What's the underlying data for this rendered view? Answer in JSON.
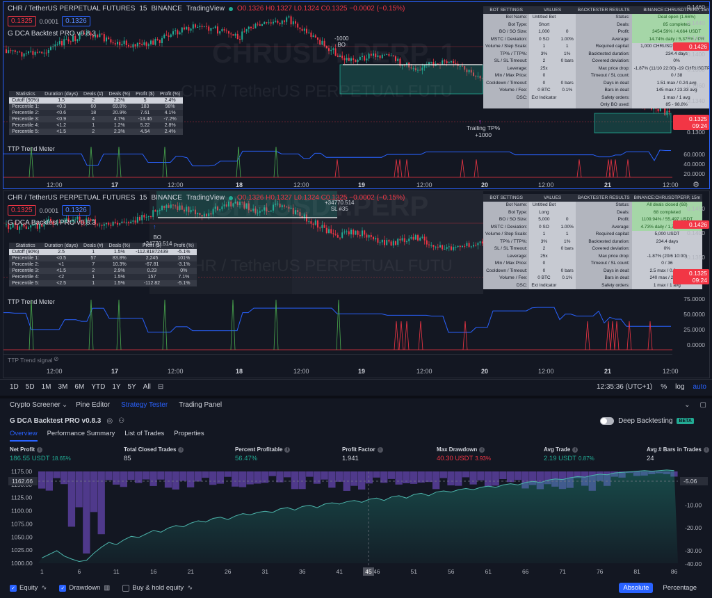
{
  "pane1": {
    "symbol": "CHR / TetherUS PERPETUAL FUTURES",
    "interval": "15",
    "exchange": "BINANCE",
    "source": "TradingView",
    "ohlc": {
      "o": "O0.1326",
      "h": "H0.1327",
      "l": "L0.1324",
      "c": "C0.1325",
      "chg": "−0.0002 (−0.15%)"
    },
    "sell_price": "0.1325",
    "spread": "0.0001",
    "buy_price": "0.1326",
    "indicator": "G DCA Backtest PRO v0.8.3",
    "watermark1": "CHRUSDT.PERP, 1",
    "watermark2": "CHR / TetherUS PERPETUAL FUTU",
    "stats": {
      "headers": [
        "Statistics",
        "Duration (days)",
        "Deals (#)",
        "Deals (%)",
        "Profit ($)",
        "Profit (%)"
      ],
      "rows": [
        [
          "Cutoff (90%)",
          "1.5",
          "2",
          "2.3%",
          "5",
          "2.4%"
        ],
        [
          "Percentile 1:",
          "<0.3",
          "60",
          "69.8%",
          "183",
          "98%"
        ],
        [
          "Percentile 2:",
          "<0.6",
          "18",
          "20.9%",
          "7.61",
          "4.1%"
        ],
        [
          "Percentile 3:",
          "<0.9",
          "4",
          "4.7%",
          "-13.46",
          "-7.2%"
        ],
        [
          "Percentile 4:",
          "<1.2",
          "1",
          "1.2%",
          "5.22",
          "2.8%"
        ],
        [
          "Percentile 5:",
          "<1.5",
          "2",
          "2.3%",
          "4.54",
          "2.4%"
        ]
      ]
    },
    "bot_settings": {
      "h1": "BOT SETTINGS",
      "h2": "VALUES",
      "h3": "BACKTESTER RESULTS",
      "h4": "BINANCE:CHRUSDTPERP, 15m",
      "rows": [
        [
          "Bot Name:",
          "Untitled Bot",
          "",
          "Status:",
          "Deal open (1.66%)"
        ],
        [
          "Bot Type:",
          "Short",
          "",
          "Deals:",
          "85 completed"
        ],
        [
          "BO / SO Size:",
          "1,000",
          "0",
          "Profit:",
          "3454.59% / 4,664 USDT"
        ],
        [
          "MSTC / Deviation:",
          "0 SO",
          "1.00%",
          "Average:",
          "14.74% daily / 5,378% APR"
        ],
        [
          "Volume / Step Scale:",
          "1",
          "1",
          "Required capital:",
          "1,000 CHRUSDTPERP (135 USDT)"
        ],
        [
          "TP% / TTP%:",
          "3%",
          "1%",
          "Backtested duration:",
          "234.4 days"
        ],
        [
          "SL / SL Timeout:",
          "2",
          "0 bars",
          "Covered deviation:",
          "0%"
        ],
        [
          "Leverage:",
          "25x",
          "",
          "Max price drop:",
          "-1.87% (11/10 22:00) -19 CHRUSDTPERP"
        ],
        [
          "Min / Max Price:",
          "0",
          "",
          "Timeout / SL count:",
          "0 / 38"
        ],
        [
          "Cooldown / Timeout:",
          "0",
          "0 bars",
          "Days in deal:",
          "1.51 max / 0.24 avg"
        ],
        [
          "Volume / Fee:",
          "0 BTC",
          "0.1%",
          "Bars in deal:",
          "145 max / 23.33 avg"
        ],
        [
          "DSC:",
          "Ext Indicator",
          "",
          "Safety orders:",
          "1 max / 1 avg"
        ],
        [
          "",
          "",
          "",
          "Only BO used:",
          "85 - 98.8%"
        ]
      ]
    },
    "yaxis": [
      "0.1460",
      "0.1440",
      "0.1420",
      "0.1400",
      "0.1380",
      "0.1360",
      "0.1340",
      "0.1320",
      "0.1300"
    ],
    "last_price_tag": "0.1426",
    "current_price_tag": "0.1325",
    "countdown": "09:24",
    "ann_bo": "-1000",
    "ann_bo2": "BO",
    "ann_ttp": "Trailing TP%",
    "ann_ttp2": "+1000",
    "ttp_label": "TTP Trend Meter",
    "ttp_axis": [
      "60.0000",
      "40.0000",
      "20.0000"
    ],
    "xaxis": [
      {
        "t": "12:00",
        "bold": false
      },
      {
        "t": "17",
        "bold": true
      },
      {
        "t": "12:00",
        "bold": false
      },
      {
        "t": "18",
        "bold": true
      },
      {
        "t": "12:00",
        "bold": false
      },
      {
        "t": "19",
        "bold": true
      },
      {
        "t": "12:00",
        "bold": false
      },
      {
        "t": "20",
        "bold": true
      },
      {
        "t": "12:00",
        "bold": false
      },
      {
        "t": "21",
        "bold": true
      },
      {
        "t": "12:00",
        "bold": false
      }
    ]
  },
  "pane2": {
    "symbol": "CHR / TetherUS PERPETUAL FUTURES",
    "interval": "15",
    "exchange": "BINANCE",
    "source": "TradingView",
    "ohlc": {
      "o": "O0.1326",
      "h": "H0.1327",
      "l": "L0.1324",
      "c": "C0.1325",
      "chg": "−0.0002 (−0.15%)"
    },
    "sell_price": "0.1325",
    "spread": "0.0001",
    "buy_price": "0.1326",
    "indicator": "G DCA Backtest PRO v0.8.3",
    "watermark1": "CHRUSDT.PERP",
    "watermark2": "CHR / TetherUS PERPETUAL FUTU",
    "stats": {
      "headers": [
        "Statistics",
        "Duration (days)",
        "Deals (#)",
        "Deals (%)",
        "Profit ($)",
        "Profit (%)"
      ],
      "rows": [
        [
          "Cutoff (90%)",
          "2.5",
          "1",
          "1.5%",
          "-112.81872439",
          "-5.1%"
        ],
        [
          "Percentile 1:",
          "<0.5",
          "57",
          "83.8%",
          "2,245",
          "101%"
        ],
        [
          "Percentile 2:",
          "<1",
          "7",
          "10.3%",
          "-67.81",
          "-3.1%"
        ],
        [
          "Percentile 3:",
          "<1.5",
          "2",
          "2.9%",
          "0.23",
          "0%"
        ],
        [
          "Percentile 4:",
          "<2",
          "1",
          "1.5%",
          "157",
          "7.1%"
        ],
        [
          "Percentile 5:",
          "<2.5",
          "1",
          "1.5%",
          "-112.82",
          "-5.1%"
        ]
      ]
    },
    "bot_settings": {
      "h1": "BOT SETTINGS",
      "h2": "VALUES",
      "h3": "BACKTESTER RESULTS",
      "h4": "BINANCE:CHRUSDTPERP, 15m",
      "rows": [
        [
          "Bot Name:",
          "Untitled Bot",
          "",
          "Status:",
          "All deals closed (68)"
        ],
        [
          "Bot Type:",
          "Long",
          "",
          "Deals:",
          "68 completed"
        ],
        [
          "BO / SO Size:",
          "5,000",
          "0",
          "Profit:",
          "1109.94% / 55,497 USDT"
        ],
        [
          "MSTC / Deviation:",
          "0 SO",
          "1.00%",
          "Average:",
          "4.73% daily / 1,728% APR"
        ],
        [
          "Volume / Step Scale:",
          "1",
          "1",
          "Required capital:",
          "5,000 USDT"
        ],
        [
          "TP% / TTP%:",
          "3%",
          "1%",
          "Backtested duration:",
          "234.4 days"
        ],
        [
          "SL / SL Timeout:",
          "2",
          "0 bars",
          "Covered deviation:",
          "0%"
        ],
        [
          "Leverage:",
          "25x",
          "",
          "Max price drop:",
          "-1.87% (20/6 10:00)"
        ],
        [
          "Min / Max Price:",
          "0",
          "",
          "Timeout / SL count:",
          "0 / 36"
        ],
        [
          "Cooldown / Timeout:",
          "0",
          "0 bars",
          "Days in deal:",
          "2.5 max / 0.3 avg"
        ],
        [
          "Volume / Fee:",
          "0 BTC",
          "0.1%",
          "Bars in deal:",
          "240 max / 29 avg"
        ],
        [
          "DSC:",
          "Ext Indicator",
          "",
          "Safety orders:",
          "1 max / 1 avg"
        ]
      ]
    },
    "yaxis": [
      "0.1450",
      "0.1400",
      "0.1350",
      "0.1300"
    ],
    "last_price_tag": "0.1426",
    "current_price_tag": "0.1325",
    "countdown": "09:24",
    "ann_bo": "BO",
    "ann_bo2": "+34770.514",
    "ann_sl": "+34770.514",
    "ann_sl2": "SL #35",
    "ttp_label": "TTP Trend Meter",
    "ttp_axis": [
      "75.0000",
      "50.0000",
      "25.0000",
      "0.0000"
    ],
    "ttp_signal": "TTP Trend signal",
    "xaxis": [
      {
        "t": "12:00",
        "bold": false
      },
      {
        "t": "17",
        "bold": true
      },
      {
        "t": "12:00",
        "bold": false
      },
      {
        "t": "18",
        "bold": true
      },
      {
        "t": "12:00",
        "bold": false
      },
      {
        "t": "19",
        "bold": true
      },
      {
        "t": "12:00",
        "bold": false
      },
      {
        "t": "20",
        "bold": true
      },
      {
        "t": "12:00",
        "bold": false
      },
      {
        "t": "21",
        "bold": true
      },
      {
        "t": "12:00",
        "bold": false
      }
    ]
  },
  "timebar": {
    "ranges": [
      "1D",
      "5D",
      "1M",
      "3M",
      "6M",
      "YTD",
      "1Y",
      "5Y",
      "All"
    ],
    "clock": "12:35:36 (UTC+1)",
    "pct": "%",
    "log": "log",
    "auto": "auto"
  },
  "tabs": [
    "Crypto Screener",
    "Pine Editor",
    "Strategy Tester",
    "Trading Panel"
  ],
  "active_tab": 2,
  "strategy": {
    "title": "G DCA Backtest PRO v0.8.3",
    "deep_label": "Deep Backtesting",
    "beta": "BETA",
    "subtabs": [
      "Overview",
      "Performance Summary",
      "List of Trades",
      "Properties"
    ],
    "metrics": [
      {
        "label": "Net Profit",
        "value": "186.55 USDT",
        "pct": "18.65%",
        "cls": "pos"
      },
      {
        "label": "Total Closed Trades",
        "value": "85",
        "pct": "",
        "cls": ""
      },
      {
        "label": "Percent Profitable",
        "value": "56.47%",
        "pct": "",
        "cls": "pos"
      },
      {
        "label": "Profit Factor",
        "value": "1.941",
        "pct": "",
        "cls": ""
      },
      {
        "label": "Max Drawdown",
        "value": "40.30 USDT",
        "pct": "3.93%",
        "cls": "neg"
      },
      {
        "label": "Avg Trade",
        "value": "2.19 USDT",
        "pct": "0.87%",
        "cls": "pos"
      },
      {
        "label": "Avg # Bars in Trades",
        "value": "24",
        "pct": "",
        "cls": ""
      }
    ],
    "left_axis": [
      "1175.00",
      "1150.00",
      "1125.00",
      "1100.00",
      "1075.00",
      "1050.00",
      "1025.00",
      "1000.00"
    ],
    "left_tag": "1162.66",
    "right_axis": [
      "0.00",
      "-10.00",
      "-20.00",
      "-30.00",
      "-40.00"
    ],
    "right_tag": "-5.06",
    "x_axis": [
      "1",
      "6",
      "11",
      "16",
      "21",
      "26",
      "31",
      "36",
      "41",
      "46",
      "51",
      "56",
      "61",
      "66",
      "71",
      "76",
      "81",
      "86"
    ],
    "x_tag": "45",
    "legend": [
      {
        "label": "Equity",
        "checked": true
      },
      {
        "label": "Drawdown",
        "checked": true
      },
      {
        "label": "Buy & hold equity",
        "checked": false
      }
    ],
    "abs": "Absolute",
    "perc": "Percentage"
  }
}
